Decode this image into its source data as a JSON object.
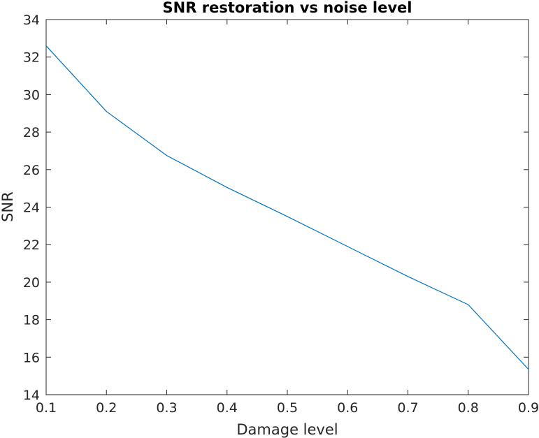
{
  "chart_data": {
    "type": "line",
    "title": "SNR restoration vs noise level",
    "xlabel": "Damage level",
    "ylabel": "SNR",
    "xlim": [
      0.1,
      0.9
    ],
    "ylim": [
      14,
      34
    ],
    "x_ticks": [
      0.1,
      0.2,
      0.3,
      0.4,
      0.5,
      0.6,
      0.7,
      0.8,
      0.9
    ],
    "y_ticks": [
      14,
      16,
      18,
      20,
      22,
      24,
      26,
      28,
      30,
      32,
      34
    ],
    "x_tick_labels": [
      "0.1",
      "0.2",
      "0.3",
      "0.4",
      "0.5",
      "0.6",
      "0.7",
      "0.8",
      "0.9"
    ],
    "y_tick_labels": [
      "14",
      "16",
      "18",
      "20",
      "22",
      "24",
      "26",
      "28",
      "30",
      "32",
      "34"
    ],
    "grid": false,
    "series": [
      {
        "x": [
          0.1,
          0.2,
          0.3,
          0.4,
          0.5,
          0.6,
          0.7,
          0.8,
          0.9
        ],
        "values": [
          32.6,
          29.1,
          26.75,
          25.05,
          23.5,
          21.9,
          20.3,
          18.8,
          15.35
        ],
        "color": "#0072BD"
      }
    ]
  }
}
